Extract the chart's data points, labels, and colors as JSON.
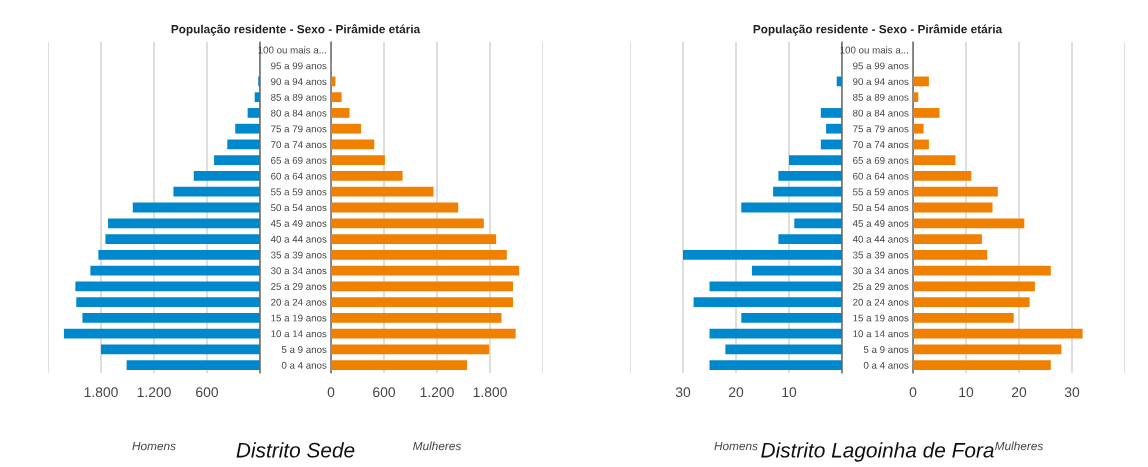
{
  "chart_data": [
    {
      "type": "bar",
      "orientation": "horizontal",
      "title": "População residente - Sexo - Pirâmide etária",
      "xlabel": "Homens",
      "annotations": [
        "Distrito Sede"
      ],
      "categories": [
        null,
        null,
        null,
        null,
        null,
        null,
        null,
        null,
        null,
        null,
        null,
        null,
        null,
        null,
        null,
        null,
        null,
        null,
        null,
        null,
        null
      ],
      "values": [
        0,
        0,
        20,
        60,
        140,
        280,
        370,
        520,
        750,
        980,
        1440,
        1720,
        1750,
        1830,
        1920,
        2090,
        2080,
        2010,
        2220,
        1800,
        1510
      ],
      "color": "#0088cc",
      "xlim": [
        2400,
        0
      ],
      "xticks": [
        {
          "value": 2400,
          "label": null
        },
        {
          "value": 1800,
          "label": "1.800"
        },
        {
          "value": 1200,
          "label": "1.200"
        },
        600,
        {
          "value": 0,
          "label": null
        }
      ],
      "grid": "x",
      "tick_labels": "x"
    },
    {
      "type": "bar",
      "orientation": "horizontal",
      "xlabel": "Mulheres",
      "categories": [
        "100 ou mais a...",
        "95 a 99 anos",
        "90 a 94 anos",
        "85 a 89 anos",
        "80 a 84 anos",
        "75 a 79 anos",
        "70 a 74 anos",
        "65 a 69 anos",
        "60 a 64 anos",
        "55 a 59 anos",
        "50 a 54 anos",
        "45 a 49 anos",
        "40 a 44 anos",
        "35 a 39 anos",
        "30 a 34 anos",
        "25 a 29 anos",
        "20 a 24 anos",
        "15 a 19 anos",
        "10 a 14 anos",
        "5 a 9 anos",
        "0 a 4 anos"
      ],
      "values": [
        0,
        10,
        50,
        120,
        210,
        340,
        490,
        610,
        810,
        1160,
        1440,
        1730,
        1870,
        1990,
        2130,
        2060,
        2060,
        1930,
        2090,
        1790,
        1540
      ],
      "color": "#f08000",
      "xlim": [
        0,
        2400
      ],
      "xticks": [
        0,
        600,
        {
          "value": 1200,
          "label": "1.200"
        },
        {
          "value": 1800,
          "label": "1.800"
        },
        {
          "value": 2400,
          "label": null
        }
      ],
      "grid": "x"
    },
    {
      "type": "bar",
      "orientation": "horizontal",
      "title": "População residente - Sexo - Pirâmide etária",
      "xlabel": "Homens",
      "annotations": [
        "Distrito Lagoinha de Fora"
      ],
      "categories": [
        null,
        null,
        null,
        null,
        null,
        null,
        null,
        null,
        null,
        null,
        null,
        null,
        null,
        null,
        null,
        null,
        null,
        null,
        null,
        null,
        null
      ],
      "values": [
        0,
        0,
        1,
        0,
        4,
        3,
        4,
        10,
        12,
        13,
        19,
        9,
        12,
        30,
        17,
        25,
        28,
        19,
        25,
        22,
        25
      ],
      "color": "#0088cc",
      "xlim": [
        40,
        0
      ],
      "xticks": [
        {
          "value": 40,
          "label": null
        },
        30,
        20,
        10,
        {
          "value": 0,
          "label": null
        }
      ],
      "grid": "x",
      "tick_labels": "x"
    },
    {
      "type": "bar",
      "orientation": "horizontal",
      "xlabel": "Mulheres",
      "categories": [
        "100 ou mais a...",
        "95 a 99 anos",
        "90 a 94 anos",
        "85 a 89 anos",
        "80 a 84 anos",
        "75 a 79 anos",
        "70 a 74 anos",
        "65 a 69 anos",
        "60 a 64 anos",
        "55 a 59 anos",
        "50 a 54 anos",
        "45 a 49 anos",
        "40 a 44 anos",
        "35 a 39 anos",
        "30 a 34 anos",
        "25 a 29 anos",
        "20 a 24 anos",
        "15 a 19 anos",
        "10 a 14 anos",
        "5 a 9 anos",
        "0 a 4 anos"
      ],
      "values": [
        0,
        0,
        3,
        1,
        5,
        2,
        3,
        8,
        11,
        16,
        15,
        21,
        13,
        14,
        26,
        23,
        22,
        19,
        32,
        28,
        26
      ],
      "color": "#f08000",
      "xlim": [
        0,
        40
      ],
      "xticks": [
        0,
        10,
        20,
        30,
        {
          "value": 40,
          "label": null
        }
      ],
      "grid": "x"
    }
  ]
}
